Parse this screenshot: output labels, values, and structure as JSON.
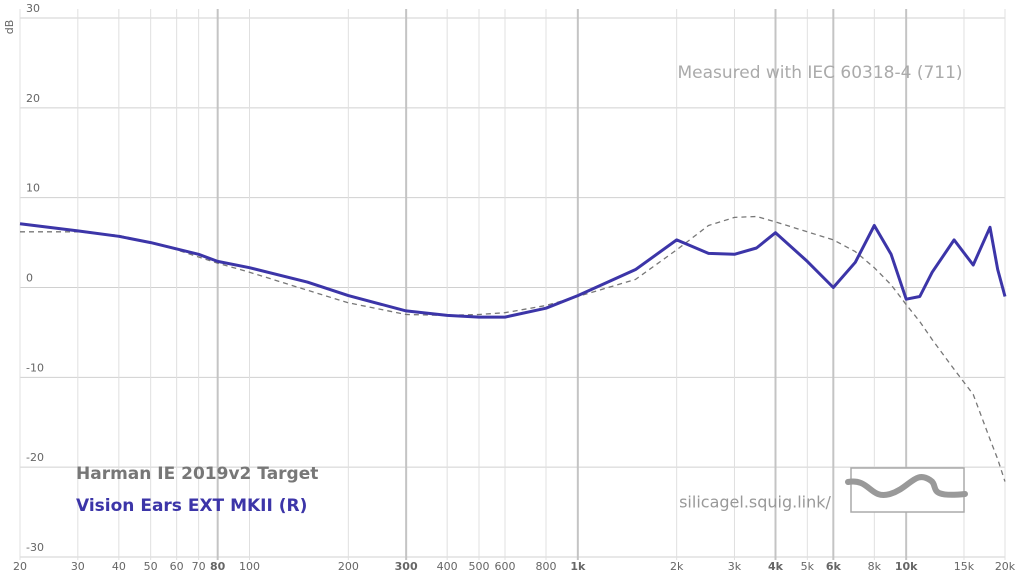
{
  "chart_data": {
    "type": "line",
    "annotation": "Measured with IEC 60318-4 (711)",
    "y_label": "dB",
    "source": "silicagel.squig.link/",
    "x_log": true,
    "grid": true,
    "xlim": [
      20,
      20000
    ],
    "ylim": [
      -31,
      31
    ],
    "yticks": [
      30,
      20,
      10,
      0,
      -10,
      -20,
      -30
    ],
    "xticks": [
      20,
      30,
      40,
      50,
      60,
      70,
      {
        "value": 80,
        "label": "80",
        "emphasized": true
      },
      100,
      200,
      {
        "value": 300,
        "label": "300",
        "emphasized": true
      },
      400,
      500,
      600,
      800,
      {
        "value": 1000,
        "label": "1k",
        "emphasized": true
      },
      {
        "value": 2000,
        "label": "2k"
      },
      {
        "value": 3000,
        "label": "3k"
      },
      {
        "value": 4000,
        "label": "4k",
        "emphasized": true
      },
      {
        "value": 5000,
        "label": "5k"
      },
      {
        "value": 6000,
        "label": "6k",
        "emphasized": true
      },
      {
        "value": 8000,
        "label": "8k"
      },
      {
        "value": 10000,
        "label": "10k",
        "emphasized": true
      },
      {
        "value": 15000,
        "label": "15k"
      },
      {
        "value": 20000,
        "label": "20k"
      }
    ],
    "x": [
      20,
      30,
      40,
      50,
      60,
      70,
      80,
      100,
      150,
      200,
      300,
      400,
      500,
      600,
      800,
      1000,
      1500,
      2000,
      2500,
      3000,
      3500,
      4000,
      5000,
      6000,
      7000,
      8000,
      9000,
      10000,
      11000,
      12000,
      14000,
      16000,
      18000,
      19000,
      20000
    ],
    "series": [
      {
        "name": "Harman IE 2019v2 Target",
        "color": "#777777",
        "dash": true,
        "values": [
          6.2,
          6.2,
          5.8,
          5.0,
          4.2,
          3.4,
          2.7,
          1.7,
          -0.3,
          -1.7,
          -3.0,
          -3.1,
          -3.0,
          -2.8,
          -2.0,
          -1.0,
          0.9,
          4.2,
          6.9,
          7.8,
          7.9,
          7.3,
          6.2,
          5.3,
          4.0,
          2.2,
          0.3,
          -1.9,
          -3.8,
          -5.8,
          -9.1,
          -11.9,
          -16.9,
          -19.1,
          -21.6
        ]
      },
      {
        "name": "Vision Ears EXT MKII (R)",
        "color": "#3c35a8",
        "dash": false,
        "values": [
          7.1,
          6.3,
          5.7,
          5.0,
          4.3,
          3.7,
          2.9,
          2.2,
          0.6,
          -0.9,
          -2.6,
          -3.1,
          -3.3,
          -3.3,
          -2.3,
          -0.9,
          2.0,
          5.3,
          3.8,
          3.7,
          4.4,
          6.1,
          2.9,
          0.0,
          2.8,
          6.9,
          3.7,
          -1.3,
          -1.0,
          1.7,
          5.3,
          2.5,
          6.7,
          2.0,
          -1.0
        ]
      }
    ]
  }
}
